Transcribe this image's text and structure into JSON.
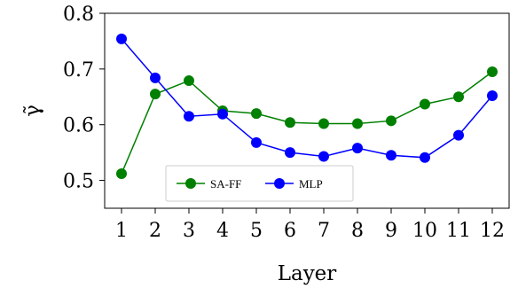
{
  "chart_data": {
    "type": "line",
    "title": "",
    "xlabel": "Layer",
    "ylabel": "γ̃",
    "x": [
      1,
      2,
      3,
      4,
      5,
      6,
      7,
      8,
      9,
      10,
      11,
      12
    ],
    "xlim": [
      0.5,
      12.5
    ],
    "ylim": [
      0.45,
      0.8
    ],
    "yticks": [
      0.5,
      0.6,
      0.7,
      0.8
    ],
    "ytick_labels": [
      "0.5",
      "0.6",
      "0.7",
      "0.8"
    ],
    "grid": false,
    "legend_position": "lower-center",
    "series": [
      {
        "name": "SA-FF",
        "color": "#008000",
        "marker": "circle",
        "values": [
          0.512,
          0.655,
          0.679,
          0.625,
          0.62,
          0.604,
          0.602,
          0.602,
          0.607,
          0.637,
          0.65,
          0.695
        ]
      },
      {
        "name": "MLP",
        "color": "#0000ff",
        "marker": "circle",
        "values": [
          0.754,
          0.684,
          0.615,
          0.619,
          0.568,
          0.55,
          0.543,
          0.558,
          0.545,
          0.541,
          0.581,
          0.652
        ]
      }
    ]
  }
}
